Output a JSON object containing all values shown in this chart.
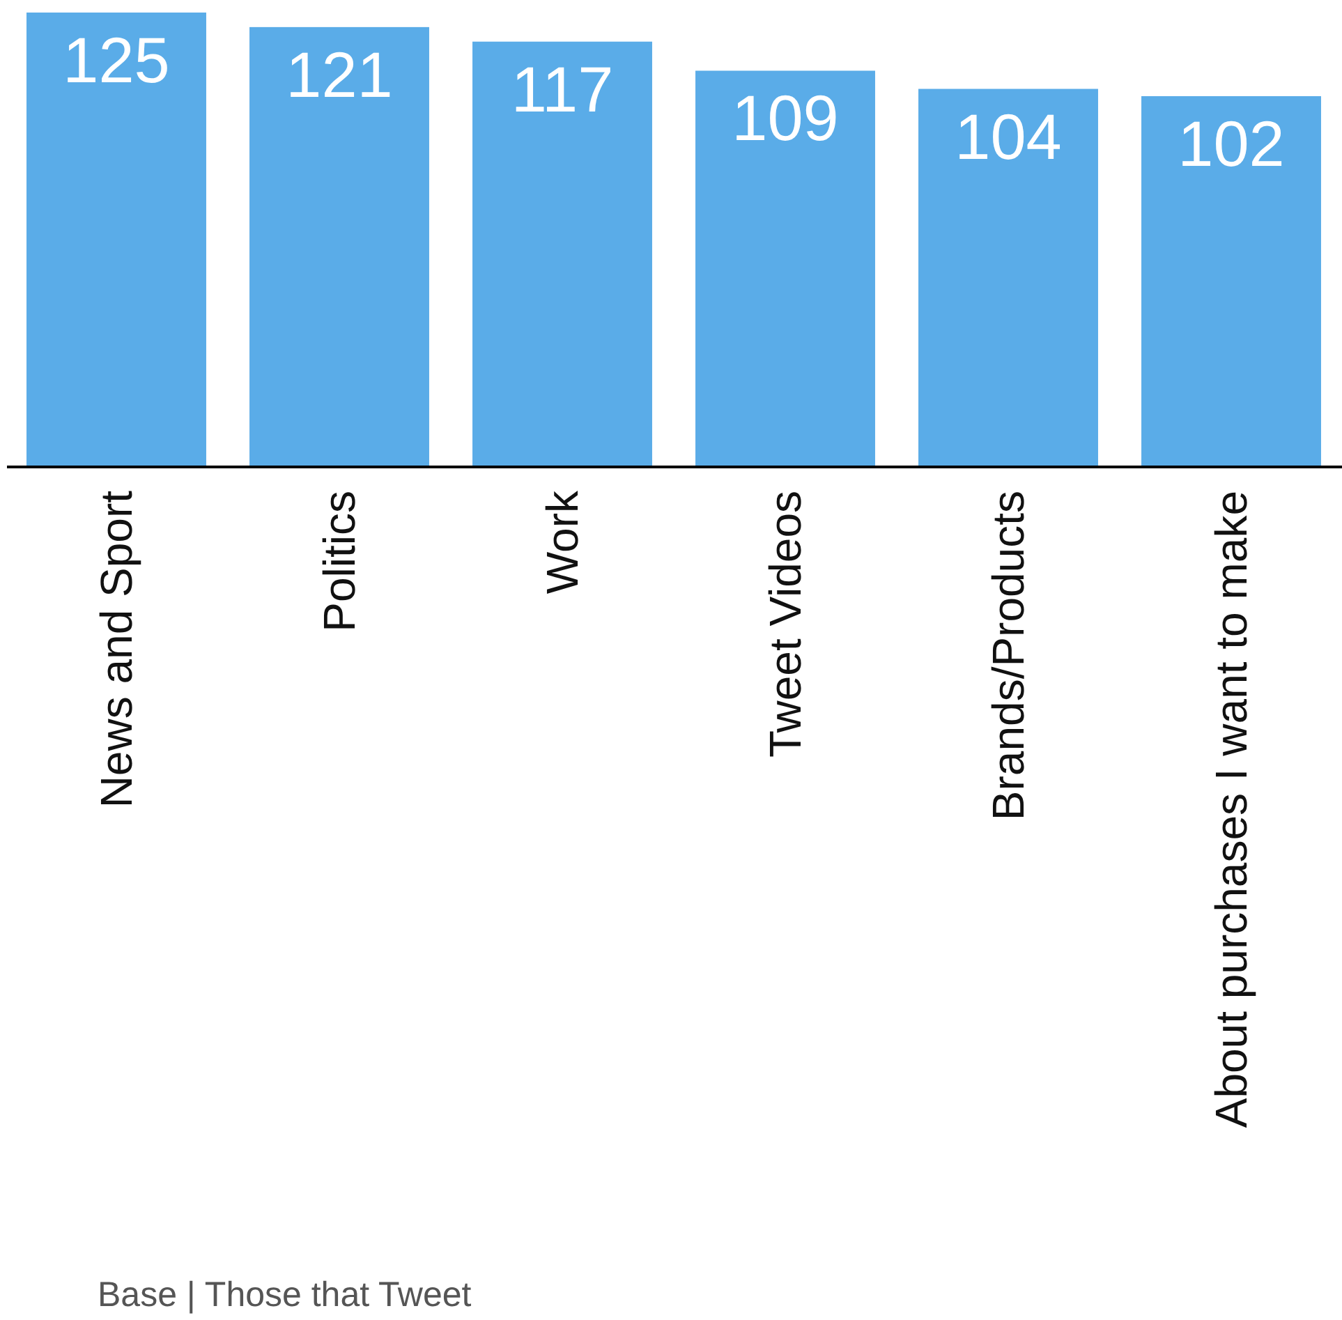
{
  "chart_data": {
    "type": "bar",
    "categories": [
      "News and Sport",
      "Politics",
      "Work",
      "Tweet Videos",
      "Brands/Products",
      "About purchases I want to make"
    ],
    "values": [
      125,
      121,
      117,
      109,
      104,
      102
    ],
    "color": "#5aace8",
    "data_labels": true,
    "annotations": [
      "Base | Those that Tweet"
    ]
  }
}
